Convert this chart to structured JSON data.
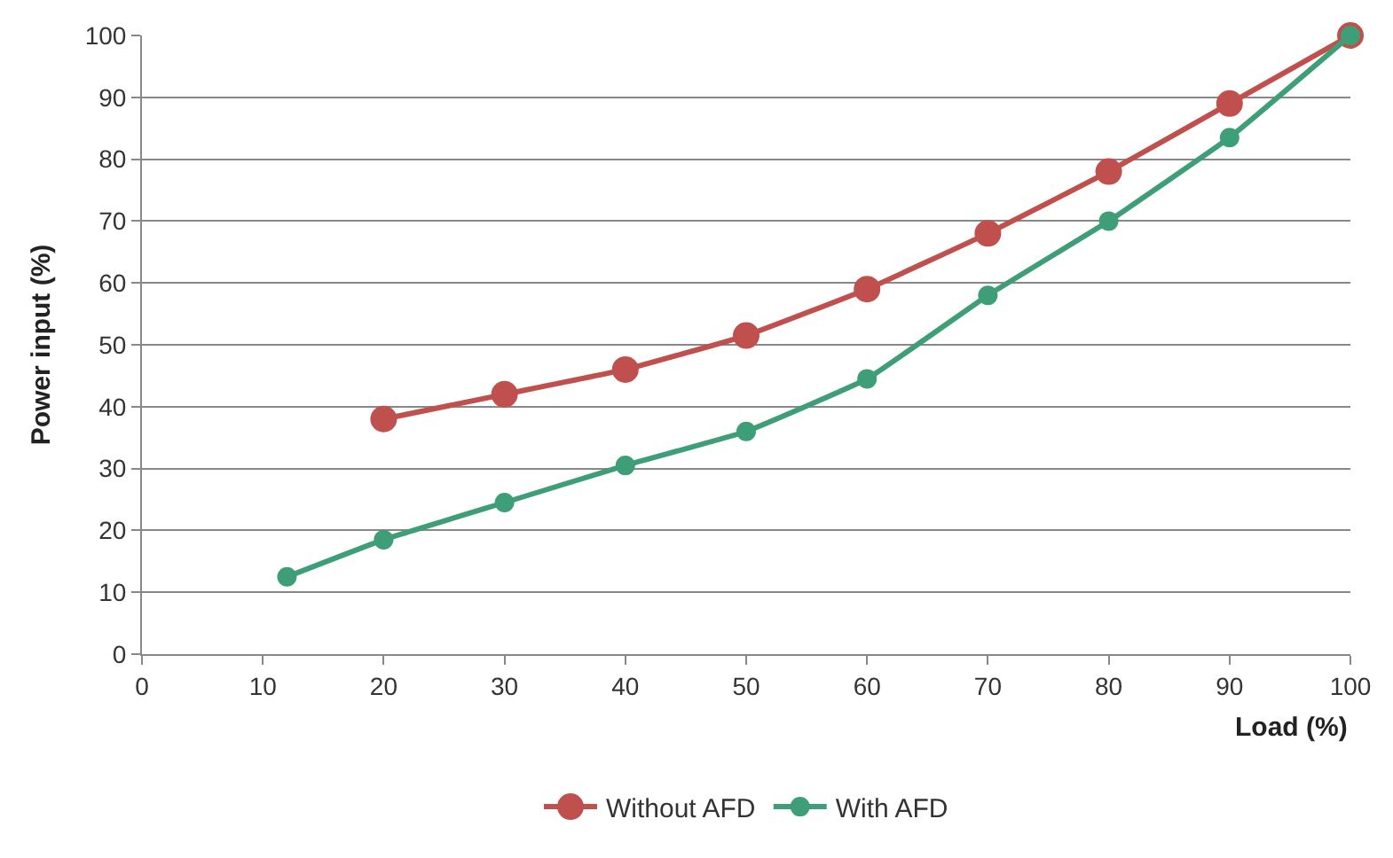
{
  "chart_data": {
    "type": "line",
    "xlabel": "Load (%)",
    "ylabel": "Power input (%)",
    "xlim": [
      0,
      100
    ],
    "xticks": [
      0,
      10,
      20,
      30,
      40,
      50,
      60,
      70,
      80,
      90,
      100
    ],
    "ylim": [
      0,
      100
    ],
    "yticks": [
      0,
      10,
      20,
      30,
      40,
      50,
      60,
      70,
      80,
      90,
      100
    ],
    "grid": "y",
    "legend": "bottom",
    "marker": "circle",
    "line_style": "solid",
    "series": [
      {
        "name": "Without AFD",
        "color": "#c0504d",
        "x": [
          20,
          30,
          40,
          50,
          60,
          70,
          80,
          90,
          100
        ],
        "values": [
          38,
          42,
          46,
          51.5,
          59,
          68,
          78,
          89,
          100
        ]
      },
      {
        "name": "With AFD",
        "color": "#3d9e78",
        "x": [
          12,
          20,
          30,
          40,
          50,
          60,
          70,
          80,
          90,
          100
        ],
        "values": [
          12.5,
          18.5,
          24.5,
          30.5,
          36,
          44.5,
          58,
          70,
          83.5,
          100
        ]
      }
    ]
  }
}
